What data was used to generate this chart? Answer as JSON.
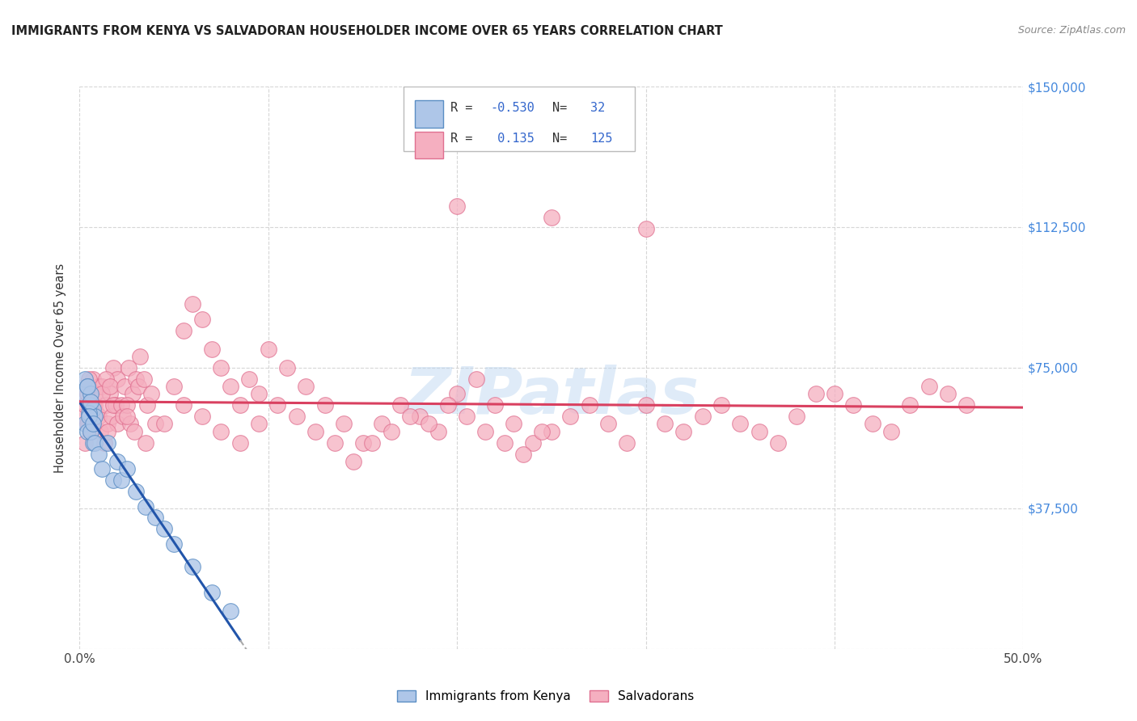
{
  "title": "IMMIGRANTS FROM KENYA VS SALVADORAN HOUSEHOLDER INCOME OVER 65 YEARS CORRELATION CHART",
  "source": "Source: ZipAtlas.com",
  "ylabel": "Householder Income Over 65 years",
  "xlim": [
    0,
    0.5
  ],
  "ylim": [
    0,
    150000
  ],
  "yticks": [
    0,
    37500,
    75000,
    112500,
    150000
  ],
  "xticks": [
    0.0,
    0.1,
    0.2,
    0.3,
    0.4,
    0.5
  ],
  "kenya_R": -0.53,
  "kenya_N": 32,
  "salvador_R": 0.135,
  "salvador_N": 125,
  "kenya_color": "#aec6e8",
  "kenya_edge_color": "#5b8ec4",
  "salvador_color": "#f5afc0",
  "salvador_edge_color": "#e07090",
  "kenya_line_color": "#2255aa",
  "salvador_line_color": "#d94060",
  "watermark": "ZIPatlas",
  "background_color": "#ffffff",
  "grid_color": "#cccccc",
  "title_color": "#222222",
  "source_color": "#888888",
  "ytick_color": "#4488dd",
  "xtick_color": "#444444"
}
